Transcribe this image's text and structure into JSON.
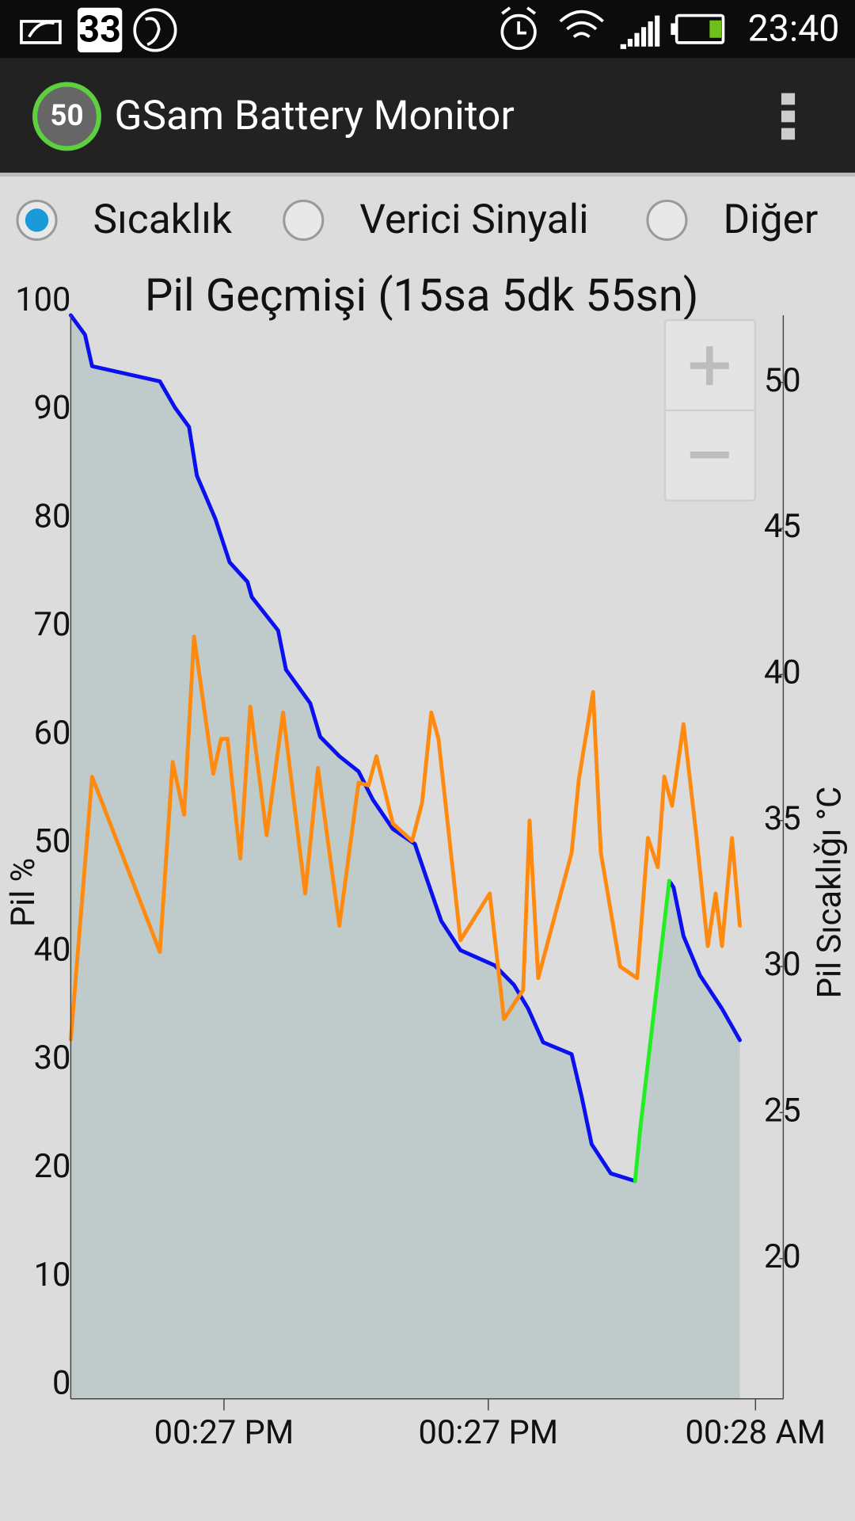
{
  "status_bar": {
    "notification_count": "33",
    "time": "23:40"
  },
  "app_bar": {
    "badge": "50",
    "title": "GSam Battery Monitor"
  },
  "tabs": [
    {
      "label": "Sıcaklık",
      "selected": true
    },
    {
      "label": "Verici Sinyali",
      "selected": false
    },
    {
      "label": "Diğer",
      "selected": false
    }
  ],
  "chart_data": {
    "type": "line",
    "title": "Pil Geçmişi (15sa 5dk 55sn)",
    "y_label": "Pil %",
    "y2_label": "Pil Sıcaklıǧı °C",
    "xlim": [
      0,
      100
    ],
    "xticks": [
      {
        "value": 21.5,
        "label": "00:27 PM"
      },
      {
        "value": 58.6,
        "label": "00:27 PM"
      },
      {
        "value": 96.1,
        "label": "00:28 AM"
      }
    ],
    "ylim": [
      0,
      100
    ],
    "yticks": [
      0,
      10,
      20,
      30,
      40,
      50,
      60,
      70,
      80,
      90,
      100
    ],
    "y2lim": [
      15.2,
      52.3
    ],
    "y2ticks": [
      20,
      25,
      30,
      35,
      40,
      45,
      50
    ],
    "grid": false,
    "series": [
      {
        "color": "#0a10f0",
        "fill": "#bfcbcb",
        "x": [
          0,
          2.0,
          3.0,
          12.5,
          14.6,
          16.6,
          17.7,
          20.3,
          22.3,
          24.8,
          25.4,
          29.1,
          30.2,
          33.6,
          35.0,
          37.7,
          40.4,
          42.4,
          45.2,
          48.3,
          49.9,
          52.0,
          54.7,
          59.5,
          62.2,
          64.2,
          66.3,
          70.3,
          71.7,
          73.1,
          75.8,
          79.2,
          79.9,
          84.0,
          84.6,
          86.0,
          88.3,
          91.4,
          93.9
        ],
        "values": [
          100,
          98.2,
          95.3,
          93.9,
          91.5,
          89.7,
          85.2,
          81.2,
          77.2,
          75.4,
          74.0,
          70.9,
          67.3,
          64.2,
          61.1,
          59.3,
          57.9,
          55.3,
          52.6,
          51.2,
          48.1,
          44.1,
          41.4,
          40.0,
          38.2,
          36.0,
          32.9,
          31.8,
          27.9,
          23.5,
          20.8,
          20.1,
          null,
          47.8,
          47.2,
          42.7,
          39.1,
          36.0,
          33.1
        ]
      },
      {
        "color": "#22ee22",
        "x": [
          79.2,
          79.9,
          84.0
        ],
        "values": [
          20.1,
          24.8,
          47.8
        ]
      },
      {
        "color": "#ff8a10",
        "axis": "y2",
        "x": [
          0,
          3.0,
          12.5,
          14.3,
          15.9,
          17.3,
          20.0,
          21.1,
          22.0,
          23.8,
          25.2,
          27.5,
          29.8,
          32.9,
          34.7,
          37.7,
          40.4,
          41.8,
          42.9,
          45.2,
          47.9,
          49.3,
          50.6,
          51.6,
          54.7,
          58.8,
          60.8,
          63.5,
          64.4,
          65.6,
          70.3,
          71.3,
          73.3,
          74.4,
          77.1,
          79.5,
          81.0,
          82.4,
          83.3,
          84.4,
          86.0,
          87.8,
          89.4,
          90.5,
          91.4,
          92.8,
          93.9
        ],
        "values": [
          27.5,
          36.5,
          30.5,
          37.0,
          35.2,
          41.3,
          36.6,
          37.8,
          37.8,
          33.7,
          38.9,
          34.5,
          38.7,
          32.5,
          36.8,
          31.4,
          36.3,
          36.2,
          37.2,
          34.9,
          34.3,
          35.6,
          38.7,
          37.8,
          30.9,
          32.5,
          28.2,
          29.2,
          35.0,
          29.6,
          33.9,
          36.4,
          39.4,
          33.9,
          30.0,
          29.6,
          34.4,
          33.4,
          36.5,
          35.5,
          38.3,
          34.5,
          30.7,
          32.5,
          30.7,
          34.4,
          31.4
        ]
      }
    ]
  }
}
